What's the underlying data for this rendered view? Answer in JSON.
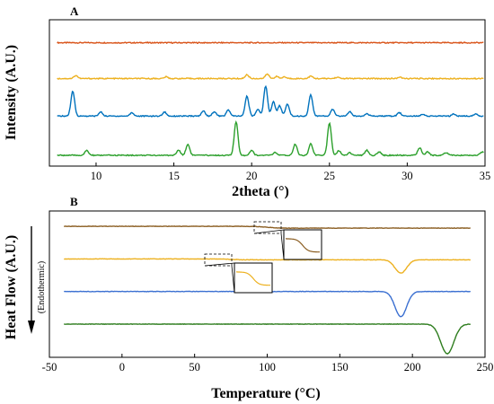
{
  "chart_data": [
    {
      "panel": "A",
      "type": "line",
      "xlabel": "2theta (°)",
      "ylabel": "Intensity (A.U.)",
      "xlim": [
        7,
        35
      ],
      "x_ticks": [
        "10",
        "15",
        "20",
        "25",
        "30",
        "35"
      ],
      "grid": false,
      "legend": "none",
      "series": [
        {
          "color": "#d9541a",
          "offset": 3.3,
          "peaks": []
        },
        {
          "color": "#edb120",
          "offset": 2.25,
          "peaks": [
            [
              8.7,
              0.09
            ],
            [
              14.5,
              0.05
            ],
            [
              19.7,
              0.11
            ],
            [
              21.0,
              0.13
            ],
            [
              21.6,
              0.06
            ],
            [
              22.1,
              0.05
            ],
            [
              23.8,
              0.07
            ],
            [
              25.5,
              0.04
            ],
            [
              29.5,
              0.04
            ]
          ]
        },
        {
          "color": "#0072bd",
          "offset": 1.15,
          "peaks": [
            [
              8.5,
              0.72
            ],
            [
              10.3,
              0.12
            ],
            [
              12.3,
              0.1
            ],
            [
              14.4,
              0.12
            ],
            [
              16.9,
              0.15
            ],
            [
              17.6,
              0.13
            ],
            [
              18.5,
              0.18
            ],
            [
              19.7,
              0.58
            ],
            [
              20.4,
              0.2
            ],
            [
              20.9,
              0.88
            ],
            [
              21.4,
              0.42
            ],
            [
              21.8,
              0.3
            ],
            [
              22.3,
              0.35
            ],
            [
              23.8,
              0.62
            ],
            [
              25.2,
              0.2
            ],
            [
              26.3,
              0.13
            ],
            [
              27.4,
              0.08
            ],
            [
              29.5,
              0.1
            ],
            [
              31.0,
              0.06
            ],
            [
              33.0,
              0.06
            ],
            [
              34.4,
              0.06
            ]
          ]
        },
        {
          "color": "#2ca02c",
          "offset": 0.0,
          "peaks": [
            [
              9.4,
              0.14
            ],
            [
              15.3,
              0.15
            ],
            [
              15.9,
              0.32
            ],
            [
              19.0,
              0.98
            ],
            [
              20.0,
              0.15
            ],
            [
              21.5,
              0.08
            ],
            [
              22.8,
              0.33
            ],
            [
              23.8,
              0.34
            ],
            [
              25.0,
              0.95
            ],
            [
              25.6,
              0.14
            ],
            [
              26.3,
              0.08
            ],
            [
              27.4,
              0.15
            ],
            [
              28.2,
              0.1
            ],
            [
              30.8,
              0.22
            ],
            [
              31.3,
              0.1
            ],
            [
              32.5,
              0.08
            ],
            [
              34.8,
              0.1
            ]
          ]
        }
      ]
    },
    {
      "panel": "B",
      "type": "line",
      "xlabel": "Temperature (°C)",
      "ylabel": "Heat Flow (A.U.)",
      "annotation": "(Endothermic)",
      "xlim": [
        -50,
        250
      ],
      "x_ticks": [
        "-50",
        "0",
        "50",
        "100",
        "150",
        "200",
        "250"
      ],
      "grid": false,
      "legend": "none",
      "series": [
        {
          "color": "#8b5e22",
          "offset": 3.3,
          "tmin": -40,
          "tmax": 240,
          "step_at": 100,
          "step": 0.06,
          "dips": []
        },
        {
          "color": "#edb120",
          "offset": 2.2,
          "tmin": -40,
          "tmax": 240,
          "step_at": 75,
          "step": 0.03,
          "dips": [
            [
              192,
              0.45,
              4
            ]
          ]
        },
        {
          "color": "#3a6fd1",
          "offset": 1.1,
          "tmin": -40,
          "tmax": 240,
          "step_at": null,
          "step": 0,
          "dips": [
            [
              192,
              0.85,
              4
            ]
          ]
        },
        {
          "color": "#2e7d1e",
          "offset": 0.0,
          "tmin": -40,
          "tmax": 240,
          "step_at": null,
          "step": 0,
          "dips": [
            [
              224,
              1.0,
              4.5
            ]
          ]
        }
      ]
    }
  ]
}
